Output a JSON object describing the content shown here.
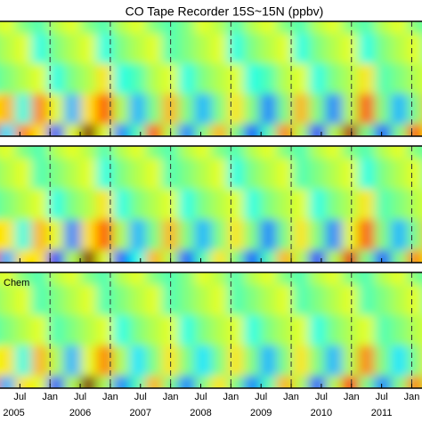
{
  "chart_data": {
    "type": "heatmap",
    "title": "CO Tape Recorder 15S~15N (ppbv)",
    "xlim": [
      2005.17,
      2012.17
    ],
    "zlim": [
      -1,
      1
    ],
    "xticks": [
      {
        "value": 2005.5,
        "label": "Jul"
      },
      {
        "value": 2006,
        "label": "Jan"
      },
      {
        "value": 2006.5,
        "label": "Jul"
      },
      {
        "value": 2007,
        "label": "Jan"
      },
      {
        "value": 2007.5,
        "label": "Jul"
      },
      {
        "value": 2008,
        "label": "Jan"
      },
      {
        "value": 2008.5,
        "label": "Jul"
      },
      {
        "value": 2009,
        "label": "Jan"
      },
      {
        "value": 2009.5,
        "label": "Jul"
      },
      {
        "value": 2010,
        "label": "Jan"
      },
      {
        "value": 2010.5,
        "label": "Jul"
      },
      {
        "value": 2011,
        "label": "Jan"
      },
      {
        "value": 2011.5,
        "label": "Jul"
      },
      {
        "value": 2012,
        "label": "Jan"
      }
    ],
    "year_ticks": [
      {
        "value": 2005.4,
        "label": "2005"
      },
      {
        "value": 2006.5,
        "label": "2006"
      },
      {
        "value": 2007.5,
        "label": "2007"
      },
      {
        "value": 2008.5,
        "label": "2008"
      },
      {
        "value": 2009.5,
        "label": "2009"
      },
      {
        "value": 2010.5,
        "label": "2010"
      },
      {
        "value": 2011.5,
        "label": "2011"
      }
    ],
    "panels": [
      {
        "z": [
          [
            0.1,
            0.2,
            0.0,
            -0.1,
            0.1,
            0.2,
            0.0,
            -0.1,
            0.1,
            0.2,
            0.0,
            -0.1,
            0.0,
            0.2,
            0.1,
            -0.1,
            0.1,
            0.2,
            0.0,
            -0.1,
            0.1,
            0.2,
            0.0,
            -0.1,
            0.1,
            0.2,
            0.0,
            -0.1
          ],
          [
            0.0,
            0.1,
            0.2,
            -0.2,
            0.0,
            0.1,
            0.2,
            -0.2,
            0.0,
            0.1,
            0.2,
            -0.1,
            0.0,
            0.1,
            0.2,
            -0.2,
            0.0,
            0.1,
            0.2,
            -0.2,
            0.0,
            0.1,
            0.2,
            -0.2,
            0.0,
            0.1,
            0.2,
            -0.1
          ],
          [
            -0.1,
            0.0,
            0.1,
            0.2,
            -0.2,
            0.0,
            0.1,
            0.3,
            -0.2,
            -0.1,
            0.1,
            0.2,
            -0.2,
            0.0,
            0.1,
            0.2,
            -0.2,
            -0.1,
            0.1,
            0.2,
            -0.2,
            0.0,
            0.1,
            0.3,
            -0.1,
            0.0,
            0.1,
            0.2
          ],
          [
            0.3,
            0.4,
            -0.2,
            0.5,
            0.2,
            -0.4,
            0.3,
            0.6,
            0.1,
            -0.4,
            0.0,
            0.4,
            0.0,
            -0.4,
            0.0,
            0.3,
            0.0,
            -0.5,
            0.0,
            0.4,
            0.0,
            -0.5,
            0.1,
            0.6,
            0.0,
            -0.4,
            0.0,
            0.4
          ],
          [
            0.8,
            -0.3,
            0.5,
            0.3,
            -0.6,
            0.2,
            1.0,
            0.2,
            -0.5,
            -0.1,
            0.6,
            0.1,
            -0.5,
            0.0,
            0.4,
            0.0,
            -0.6,
            -0.1,
            0.5,
            0.1,
            -0.7,
            0.1,
            0.9,
            0.0,
            -0.6,
            0.0,
            0.6,
            0.2
          ]
        ]
      },
      {
        "z": [
          [
            0.1,
            0.2,
            0.0,
            -0.1,
            0.1,
            0.2,
            0.1,
            -0.1,
            0.1,
            0.2,
            0.0,
            -0.1,
            0.1,
            0.2,
            0.0,
            -0.1,
            0.1,
            0.2,
            0.0,
            -0.1,
            0.1,
            0.2,
            0.0,
            -0.1,
            0.1,
            0.2,
            0.0,
            -0.1
          ],
          [
            0.0,
            0.1,
            0.2,
            -0.1,
            0.0,
            0.1,
            0.2,
            -0.2,
            0.0,
            0.1,
            0.2,
            -0.1,
            0.0,
            0.1,
            0.2,
            -0.2,
            0.0,
            0.1,
            0.2,
            -0.1,
            0.0,
            0.1,
            0.2,
            -0.2,
            0.0,
            0.1,
            0.2,
            -0.1
          ],
          [
            -0.1,
            0.0,
            0.1,
            0.2,
            -0.2,
            0.0,
            0.1,
            0.3,
            -0.2,
            0.0,
            0.1,
            0.2,
            -0.2,
            0.0,
            0.1,
            0.2,
            -0.2,
            0.0,
            0.1,
            0.2,
            -0.2,
            0.0,
            0.1,
            0.3,
            -0.1,
            0.0,
            0.1,
            0.2
          ],
          [
            0.3,
            0.3,
            -0.2,
            0.4,
            0.2,
            -0.5,
            0.3,
            0.6,
            0.1,
            -0.4,
            0.0,
            0.4,
            0.0,
            -0.4,
            0.0,
            0.3,
            0.0,
            -0.5,
            0.0,
            0.3,
            0.0,
            -0.5,
            0.2,
            0.6,
            0.0,
            -0.4,
            0.0,
            0.4
          ],
          [
            0.7,
            -0.4,
            0.3,
            0.3,
            -0.7,
            0.1,
            1.0,
            0.2,
            -0.6,
            -0.2,
            0.4,
            0.1,
            -0.6,
            -0.1,
            0.3,
            0.0,
            -0.6,
            -0.1,
            0.4,
            0.1,
            -0.7,
            0.1,
            0.8,
            0.0,
            -0.6,
            0.0,
            0.5,
            0.2
          ]
        ]
      },
      {
        "label": "Chem",
        "z": [
          [
            0.1,
            0.2,
            0.0,
            -0.1,
            0.1,
            0.2,
            0.0,
            -0.1,
            0.1,
            0.2,
            0.0,
            -0.1,
            0.0,
            0.2,
            0.1,
            -0.1,
            0.1,
            0.2,
            0.0,
            -0.1,
            0.1,
            0.2,
            0.0,
            -0.1,
            0.1,
            0.2,
            0.0,
            -0.1
          ],
          [
            0.0,
            0.1,
            0.2,
            -0.1,
            0.0,
            0.1,
            0.2,
            -0.1,
            0.0,
            0.1,
            0.2,
            -0.1,
            0.0,
            0.1,
            0.2,
            -0.1,
            0.0,
            0.1,
            0.2,
            -0.1,
            0.0,
            0.1,
            0.2,
            -0.1,
            0.0,
            0.1,
            0.2,
            -0.1
          ],
          [
            -0.1,
            0.0,
            0.1,
            0.2,
            -0.1,
            0.0,
            0.1,
            0.2,
            -0.2,
            0.0,
            0.1,
            0.2,
            -0.2,
            0.0,
            0.1,
            0.2,
            -0.2,
            0.0,
            0.1,
            0.2,
            -0.2,
            0.0,
            0.1,
            0.2,
            -0.1,
            0.0,
            0.1,
            0.2
          ],
          [
            0.2,
            0.3,
            -0.2,
            0.4,
            0.1,
            -0.4,
            0.2,
            0.5,
            0.1,
            -0.3,
            0.0,
            0.3,
            0.0,
            -0.3,
            0.0,
            0.3,
            0.0,
            -0.4,
            0.0,
            0.3,
            0.0,
            -0.4,
            0.1,
            0.5,
            0.0,
            -0.3,
            0.0,
            0.3
          ],
          [
            0.5,
            -0.4,
            0.3,
            0.2,
            -0.6,
            0.1,
            1.0,
            0.1,
            -0.5,
            -0.1,
            0.4,
            0.0,
            -0.5,
            0.0,
            0.3,
            0.0,
            -0.5,
            -0.1,
            0.4,
            0.1,
            -0.6,
            0.1,
            0.7,
            0.0,
            -0.5,
            0.0,
            0.5,
            0.1
          ]
        ]
      }
    ]
  }
}
